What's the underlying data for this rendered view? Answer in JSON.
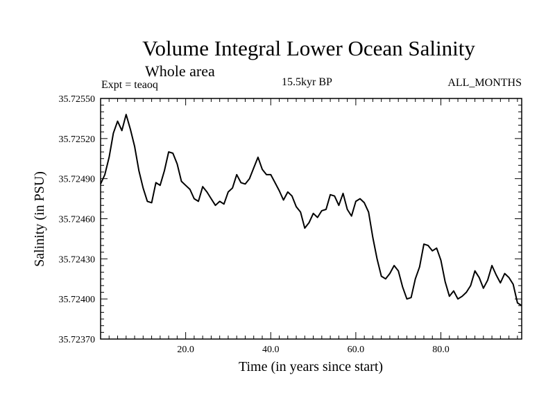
{
  "chart_data": {
    "type": "line",
    "title": "Volume Integral Lower Ocean Salinity",
    "subtitle": "Whole area",
    "annotations": {
      "experiment": "Expt = teaoq",
      "period": "15.5kyr BP",
      "months": "ALL_MONTHS"
    },
    "xlabel": "Time (in years since start)",
    "ylabel": "Salinity (in PSU)",
    "xlim": [
      0,
      99
    ],
    "ylim": [
      35.7237,
      35.7255
    ],
    "x_tick_labels": [
      "20.0",
      "40.0",
      "60.0",
      "80.0"
    ],
    "y_tick_labels": [
      "35.72370",
      "35.72400",
      "35.72430",
      "35.72460",
      "35.72490",
      "35.72520",
      "35.72550"
    ],
    "series": [
      {
        "name": "salinity",
        "x": [
          0,
          1,
          2,
          3,
          4,
          5,
          6,
          7,
          8,
          9,
          10,
          11,
          12,
          13,
          14,
          15,
          16,
          17,
          18,
          19,
          20,
          21,
          22,
          23,
          24,
          25,
          26,
          27,
          28,
          29,
          30,
          31,
          32,
          33,
          34,
          35,
          36,
          37,
          38,
          39,
          40,
          41,
          42,
          43,
          44,
          45,
          46,
          47,
          48,
          49,
          50,
          51,
          52,
          53,
          54,
          55,
          56,
          57,
          58,
          59,
          60,
          61,
          62,
          63,
          64,
          65,
          66,
          67,
          68,
          69,
          70,
          71,
          72,
          73,
          74,
          75,
          76,
          77,
          78,
          79,
          80,
          81,
          82,
          83,
          84,
          85,
          86,
          87,
          88,
          89,
          90,
          91,
          92,
          93,
          94,
          95,
          96,
          97,
          98,
          99
        ],
        "values": [
          35.72486,
          35.72493,
          35.72506,
          35.72524,
          35.72533,
          35.72526,
          35.72538,
          35.72527,
          35.72514,
          35.72496,
          35.72483,
          35.72473,
          35.72472,
          35.72487,
          35.72485,
          35.72496,
          35.7251,
          35.72509,
          35.72501,
          35.72488,
          35.72485,
          35.72482,
          35.72475,
          35.72473,
          35.72484,
          35.7248,
          35.72475,
          35.7247,
          35.72473,
          35.72471,
          35.7248,
          35.72483,
          35.72493,
          35.72487,
          35.72486,
          35.7249,
          35.72498,
          35.72506,
          35.72497,
          35.72493,
          35.72493,
          35.72487,
          35.72481,
          35.72474,
          35.7248,
          35.72477,
          35.72469,
          35.72465,
          35.72453,
          35.72457,
          35.72464,
          35.72461,
          35.72466,
          35.72467,
          35.72478,
          35.72477,
          35.7247,
          35.72479,
          35.72467,
          35.72462,
          35.72473,
          35.72475,
          35.72472,
          35.72465,
          35.72446,
          35.7243,
          35.72417,
          35.72415,
          35.72419,
          35.72425,
          35.72421,
          35.72409,
          35.724,
          35.72401,
          35.72415,
          35.72424,
          35.72441,
          35.7244,
          35.72436,
          35.72438,
          35.72429,
          35.72413,
          35.72402,
          35.72406,
          35.724,
          35.72402,
          35.72405,
          35.7241,
          35.72421,
          35.72416,
          35.72408,
          35.72414,
          35.72425,
          35.72418,
          35.72412,
          35.72419,
          35.72416,
          35.72411,
          35.72397,
          35.72395
        ]
      }
    ]
  }
}
